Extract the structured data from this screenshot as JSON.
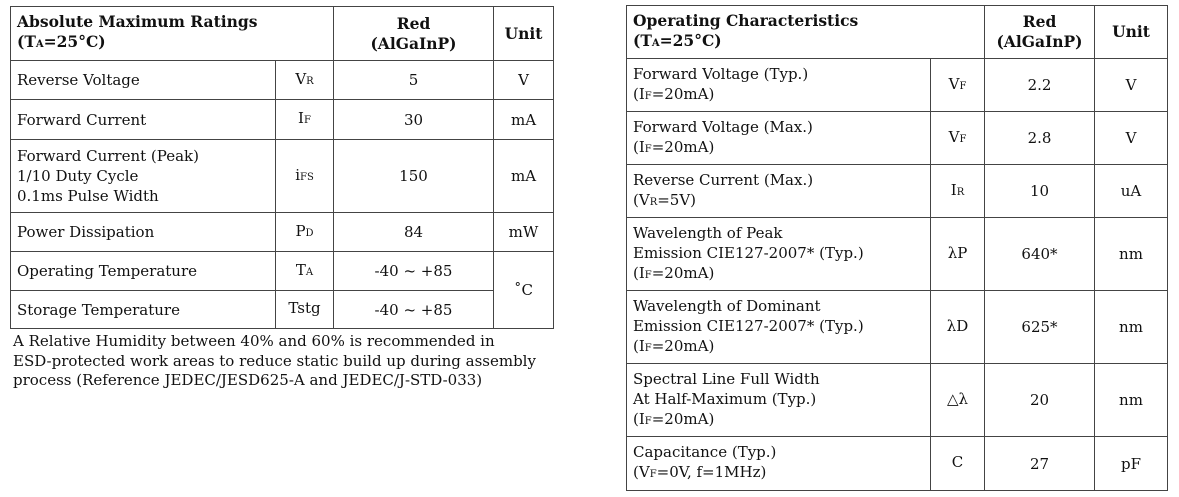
{
  "abs_max": {
    "title": "Absolute Maximum Ratings",
    "cond_pre": "(T",
    "cond_sub": "A",
    "cond_post": "=25°C)",
    "col_red": "Red",
    "col_mat": "(AlGaInP)",
    "col_unit": "Unit",
    "rows": [
      {
        "p1": "Reverse Voltage",
        "s_main": "V",
        "s_sub": "R",
        "value": "5",
        "unit": "V"
      },
      {
        "p1": "Forward Current",
        "s_main": "I",
        "s_sub": "F",
        "value": "30",
        "unit": "mA"
      },
      {
        "p1": "Forward Current (Peak)",
        "p2": "1/10 Duty Cycle",
        "p3": "0.1ms Pulse Width",
        "s_main": "i",
        "s_sub": "FS",
        "value": "150",
        "unit": "mA"
      },
      {
        "p1": "Power Dissipation",
        "s_main": "P",
        "s_sub": "D",
        "value": "84",
        "unit": "mW"
      },
      {
        "p1": "Operating Temperature",
        "s_main": "T",
        "s_sub": "A",
        "value": "-40 ~ +85",
        "unit": "˚C"
      },
      {
        "p1": "Storage Temperature",
        "s_main": "Tstg",
        "s_sub": "",
        "value": "-40 ~ +85"
      }
    ]
  },
  "note": {
    "l1": "A Relative Humidity between 40% and 60% is recommended in",
    "l2": "ESD-protected work areas to reduce static build up during assembly",
    "l3": "process (Reference JEDEC/JESD625-A and JEDEC/J-STD-033)"
  },
  "op_char": {
    "title": "Operating Characteristics",
    "cond_pre": "(T",
    "cond_sub": "A",
    "cond_post": "=25°C)",
    "col_red": "Red",
    "col_mat": "(AlGaInP)",
    "col_unit": "Unit",
    "rows": [
      {
        "p1": "Forward Voltage (Typ.)",
        "c_pre": "(I",
        "c_sub": "F",
        "c_post": "=20mA)",
        "s_main": "V",
        "s_sub": "F",
        "value": "2.2",
        "unit": "V"
      },
      {
        "p1": "Forward Voltage (Max.)",
        "c_pre": "(I",
        "c_sub": "F",
        "c_post": "=20mA)",
        "s_main": "V",
        "s_sub": "F",
        "value": "2.8",
        "unit": "V"
      },
      {
        "p1": "Reverse Current (Max.)",
        "c_pre": "(V",
        "c_sub": "R",
        "c_post": "=5V)",
        "s_main": "I",
        "s_sub": "R",
        "value": "10",
        "unit": "uA"
      },
      {
        "p1": "Wavelength of Peak",
        "p2": "Emission  CIE127-2007* (Typ.)",
        "c_pre": "(I",
        "c_sub": "F",
        "c_post": "=20mA)",
        "s_main": "λP",
        "s_sub": "",
        "value": "640*",
        "unit": "nm"
      },
      {
        "p1": "Wavelength of Dominant",
        "p2": "Emission  CIE127-2007* (Typ.)",
        "c_pre": "(I",
        "c_sub": "F",
        "c_post": "=20mA)",
        "s_main": "λD",
        "s_sub": "",
        "value": "625*",
        "unit": "nm"
      },
      {
        "p1": "Spectral Line Full Width",
        "p2": "At Half-Maximum (Typ.)",
        "c_pre": "(I",
        "c_sub": "F",
        "c_post": "=20mA)",
        "s_main": "△λ",
        "s_sub": "",
        "value": "20",
        "unit": "nm"
      },
      {
        "p1": "Capacitance (Typ.)",
        "c_pre": "(V",
        "c_sub": "F",
        "c_post": "=0V, f=1MHz)",
        "s_main": "C",
        "s_sub": "",
        "value": "27",
        "unit": "pF"
      }
    ]
  }
}
